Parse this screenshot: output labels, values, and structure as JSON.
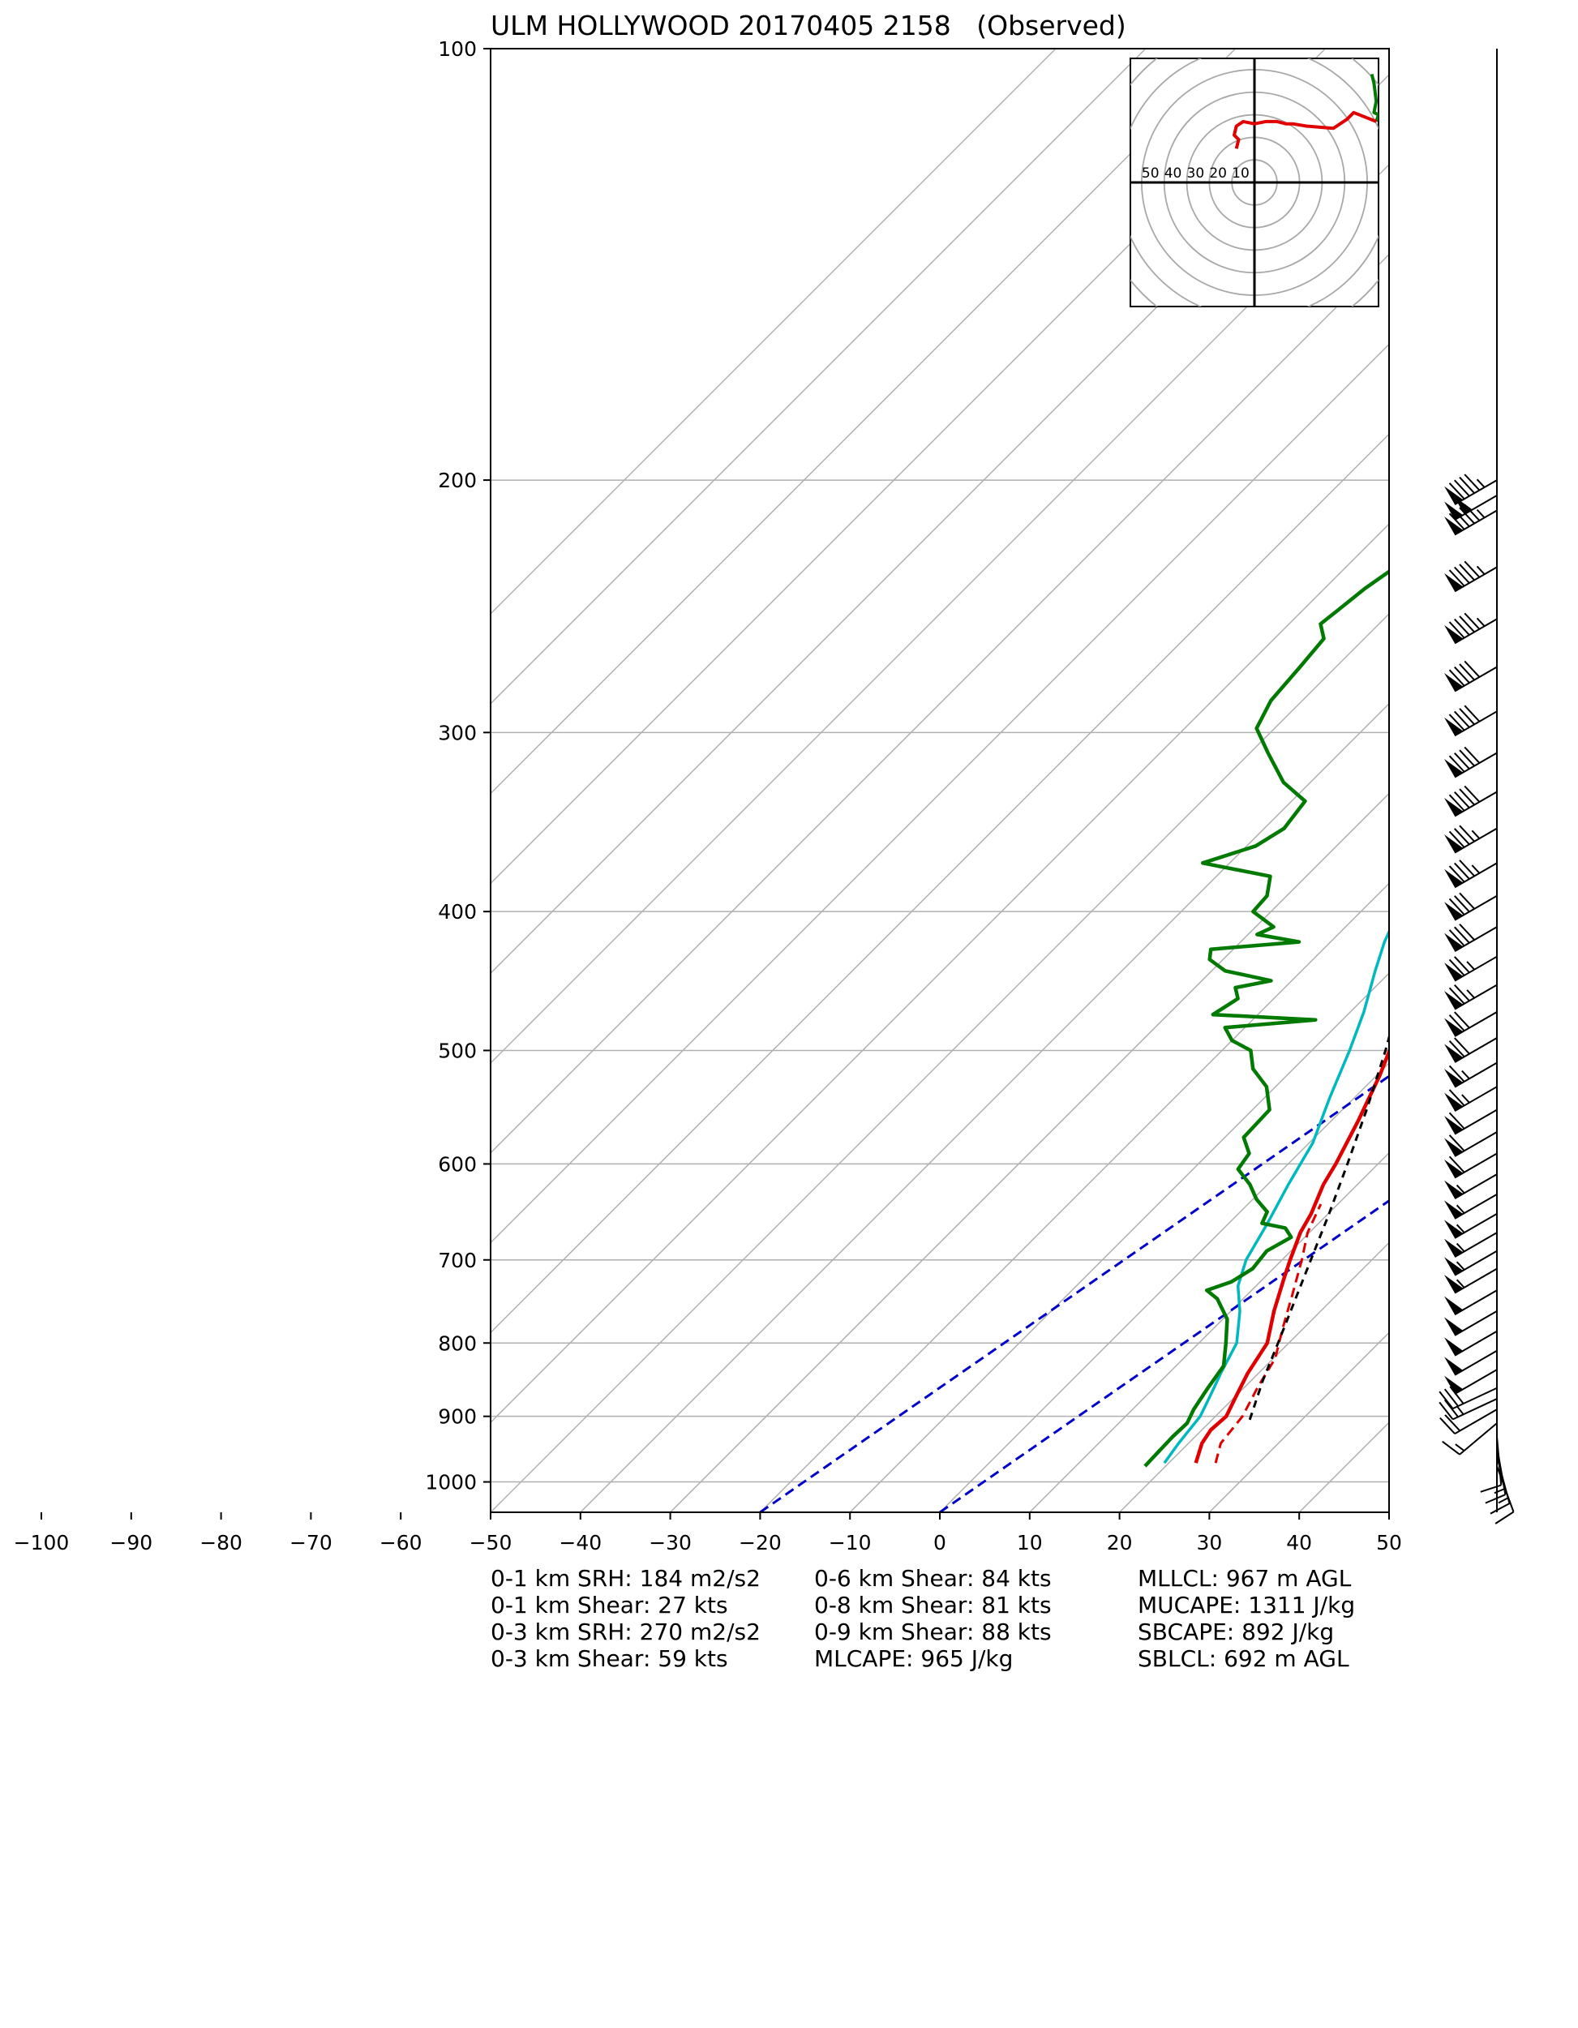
{
  "title": "ULM HOLLYWOOD 20170405 2158   (Observed)",
  "stats": {
    "col1": [
      "0-1 km SRH: 184 m2/s2",
      "0-1 km Shear: 27 kts",
      "0-3 km SRH: 270 m2/s2",
      "0-3 km Shear: 59 kts"
    ],
    "col2": [
      "0-6 km Shear: 84 kts",
      "0-8 km Shear: 81 kts",
      "0-9 km Shear: 88 kts",
      "MLCAPE: 965 J/kg"
    ],
    "col3": [
      "MLLCL: 967 m AGL",
      "MUCAPE: 1311 J/kg",
      "SBCAPE: 892 J/kg",
      "SBLCL: 692 m AGL"
    ]
  },
  "chart_data": {
    "type": "line",
    "x_ticks": [
      -100,
      -90,
      -80,
      -70,
      -60,
      -50,
      -40,
      -30,
      -20,
      -10,
      0,
      10,
      20,
      30,
      40,
      50
    ],
    "x_tick_labels": [
      "−100",
      "−90",
      "−80",
      "−70",
      "−60",
      "−50",
      "−40",
      "−30",
      "−20",
      "−10",
      "0",
      "10",
      "20",
      "30",
      "40",
      "50"
    ],
    "y_ticks": [
      100,
      200,
      300,
      400,
      500,
      600,
      700,
      800,
      900,
      1000
    ],
    "y_scale": "log",
    "ylim": [
      1050,
      100
    ],
    "xlim": [
      -50,
      50
    ],
    "skew_deg": 45,
    "grid": true,
    "colors": {
      "temperature": "#e00000",
      "dewpoint": "#007a00",
      "wetbulb": "#00b8c0",
      "virtual": "#e00000",
      "parcel": "#000000",
      "guide": "#0000cc",
      "grid": "#b0b0b0"
    },
    "series": [
      {
        "key": "temperature",
        "points": [
          [
            970,
            23.0
          ],
          [
            940,
            21.5
          ],
          [
            920,
            21.0
          ],
          [
            900,
            21.2
          ],
          [
            870,
            20.0
          ],
          [
            840,
            18.8
          ],
          [
            800,
            17.6
          ],
          [
            760,
            14.8
          ],
          [
            720,
            12.2
          ],
          [
            700,
            10.9
          ],
          [
            670,
            9.0
          ],
          [
            650,
            8.1
          ],
          [
            620,
            6.2
          ],
          [
            600,
            5.3
          ],
          [
            560,
            3.0
          ],
          [
            520,
            0.3
          ],
          [
            490,
            -2.2
          ],
          [
            460,
            -4.6
          ],
          [
            430,
            -6.6
          ],
          [
            410,
            -9.5
          ],
          [
            390,
            -12.5
          ],
          [
            370,
            -15.5
          ],
          [
            350,
            -18.2
          ],
          [
            330,
            -21.2
          ],
          [
            310,
            -24.0
          ],
          [
            290,
            -27.0
          ],
          [
            270,
            -30.3
          ],
          [
            250,
            -34.6
          ],
          [
            230,
            -39.8
          ],
          [
            215,
            -42.5
          ],
          [
            205,
            -41.8
          ],
          [
            200,
            -40.6
          ]
        ]
      },
      {
        "key": "virtual",
        "points": [
          [
            970,
            25.2
          ],
          [
            940,
            23.6
          ],
          [
            900,
            23.0
          ],
          [
            860,
            21.5
          ],
          [
            820,
            20.2
          ],
          [
            780,
            17.6
          ],
          [
            740,
            15.0
          ],
          [
            700,
            12.2
          ],
          [
            670,
            9.8
          ],
          [
            640,
            8.1
          ]
        ]
      },
      {
        "key": "wetbulb",
        "points": [
          [
            970,
            19.5
          ],
          [
            940,
            18.9
          ],
          [
            900,
            18.3
          ],
          [
            870,
            17.1
          ],
          [
            840,
            15.8
          ],
          [
            800,
            14.2
          ],
          [
            760,
            11.0
          ],
          [
            730,
            8.0
          ],
          [
            700,
            6.0
          ],
          [
            660,
            4.3
          ],
          [
            620,
            2.3
          ],
          [
            580,
            0.4
          ],
          [
            540,
            -2.7
          ],
          [
            500,
            -5.8
          ],
          [
            470,
            -8.5
          ],
          [
            440,
            -11.8
          ],
          [
            420,
            -14.0
          ],
          [
            400,
            -15.8
          ],
          [
            380,
            -18.7
          ],
          [
            360,
            -21.5
          ],
          [
            340,
            -24.6
          ],
          [
            320,
            -27.9
          ],
          [
            300,
            -31.4
          ],
          [
            280,
            -33.9
          ],
          [
            260,
            -36.6
          ],
          [
            240,
            -40.0
          ],
          [
            225,
            -43.0
          ],
          [
            210,
            -42.8
          ],
          [
            200,
            -41.4
          ]
        ]
      },
      {
        "key": "dewpoint",
        "points": [
          [
            975,
            17.7
          ],
          [
            930,
            17.5
          ],
          [
            910,
            17.6
          ],
          [
            890,
            16.8
          ],
          [
            860,
            16.0
          ],
          [
            830,
            15.3
          ],
          [
            800,
            13.0
          ],
          [
            770,
            10.5
          ],
          [
            745,
            7.1
          ],
          [
            735,
            5.0
          ],
          [
            725,
            6.8
          ],
          [
            710,
            7.7
          ],
          [
            690,
            7.3
          ],
          [
            675,
            8.5
          ],
          [
            665,
            6.8
          ],
          [
            660,
            3.7
          ],
          [
            648,
            3.0
          ],
          [
            635,
            0.4
          ],
          [
            620,
            -2.0
          ],
          [
            605,
            -5.0
          ],
          [
            590,
            -5.5
          ],
          [
            575,
            -7.9
          ],
          [
            550,
            -8.1
          ],
          [
            530,
            -11.0
          ],
          [
            515,
            -14.5
          ],
          [
            500,
            -16.8
          ],
          [
            492,
            -20.0
          ],
          [
            482,
            -22.2
          ],
          [
            476,
            -13.0
          ],
          [
            472,
            -25.0
          ],
          [
            460,
            -24.0
          ],
          [
            452,
            -25.5
          ],
          [
            447,
            -22.3
          ],
          [
            440,
            -28.5
          ],
          [
            432,
            -31.5
          ],
          [
            425,
            -32.5
          ],
          [
            420,
            -23.5
          ],
          [
            415,
            -29.0
          ],
          [
            410,
            -28.0
          ],
          [
            400,
            -32.0
          ],
          [
            390,
            -32.2
          ],
          [
            378,
            -34.0
          ],
          [
            370,
            -43.0
          ],
          [
            360,
            -39.0
          ],
          [
            350,
            -37.8
          ],
          [
            335,
            -38.5
          ],
          [
            325,
            -43.0
          ],
          [
            310,
            -48.0
          ],
          [
            298,
            -52.0
          ],
          [
            285,
            -53.5
          ],
          [
            270,
            -54.0
          ],
          [
            258,
            -54.5
          ],
          [
            252,
            -56.5
          ],
          [
            245,
            -56.0
          ],
          [
            238,
            -55.5
          ],
          [
            230,
            -54.5
          ],
          [
            220,
            -55.5
          ],
          [
            212,
            -56.0
          ],
          [
            206,
            -52.0
          ],
          [
            204,
            -50.0
          ],
          [
            202,
            -51.5
          ],
          [
            200,
            -56.0
          ],
          [
            198,
            -55.0
          ]
        ]
      },
      {
        "key": "parcel",
        "points": [
          [
            905,
            24.2
          ],
          [
            850,
            21.3
          ],
          [
            800,
            18.8
          ],
          [
            750,
            16.1
          ],
          [
            700,
            13.2
          ],
          [
            650,
            10.1
          ],
          [
            600,
            6.6
          ],
          [
            550,
            2.7
          ],
          [
            500,
            -1.8
          ],
          [
            450,
            -7.1
          ],
          [
            400,
            -13.3
          ],
          [
            350,
            -20.4
          ],
          [
            300,
            -28.5
          ],
          [
            250,
            -37.3
          ],
          [
            220,
            -42.4
          ],
          [
            198,
            -46.0
          ]
        ]
      }
    ],
    "guide_lines": [
      {
        "points": [
          [
            1050,
            -20.0
          ],
          [
            100,
            52.0
          ]
        ]
      },
      {
        "points": [
          [
            1050,
            0.0
          ],
          [
            100,
            72.0
          ]
        ]
      }
    ],
    "hodograph": {
      "ring_labels": [
        "50",
        "40",
        "30",
        "20",
        "10"
      ],
      "ring_spacing": 10,
      "max_ring": 50,
      "u_ext": [
        -55,
        55
      ],
      "v_ext": [
        -55,
        55
      ],
      "segments": [
        {
          "color": "#007a00",
          "points": [
            [
              52,
              48
            ],
            [
              53,
              44
            ],
            [
              54,
              36
            ],
            [
              53,
              31
            ],
            [
              55,
              30
            ],
            [
              54,
              27
            ]
          ]
        },
        {
          "color": "#e00000",
          "points": [
            [
              54,
              27
            ],
            [
              44,
              31
            ],
            [
              41,
              28
            ],
            [
              35,
              24
            ],
            [
              23,
              25
            ],
            [
              17,
              26
            ],
            [
              14,
              26
            ],
            [
              10,
              27
            ],
            [
              5,
              27
            ],
            [
              0,
              26
            ],
            [
              -5,
              27
            ],
            [
              -8,
              25
            ],
            [
              -9,
              21
            ],
            [
              -7,
              19
            ],
            [
              -8,
              15
            ]
          ]
        }
      ]
    },
    "wind_barbs": {
      "speed_unit": "kts",
      "barbs": [
        {
          "p": 975,
          "dir": 160,
          "spd": 10
        },
        {
          "p": 960,
          "dir": 165,
          "spd": 15
        },
        {
          "p": 945,
          "dir": 170,
          "spd": 15
        },
        {
          "p": 930,
          "dir": 175,
          "spd": 10
        },
        {
          "p": 910,
          "dir": 230,
          "spd": 15
        },
        {
          "p": 890,
          "dir": 240,
          "spd": 20
        },
        {
          "p": 875,
          "dir": 245,
          "spd": 25
        },
        {
          "p": 860,
          "dir": 245,
          "spd": 30
        },
        {
          "p": 835,
          "dir": 240,
          "spd": 50
        },
        {
          "p": 810,
          "dir": 240,
          "spd": 50
        },
        {
          "p": 785,
          "dir": 240,
          "spd": 50
        },
        {
          "p": 760,
          "dir": 240,
          "spd": 50
        },
        {
          "p": 735,
          "dir": 240,
          "spd": 50
        },
        {
          "p": 710,
          "dir": 240,
          "spd": 55
        },
        {
          "p": 690,
          "dir": 240,
          "spd": 55
        },
        {
          "p": 670,
          "dir": 240,
          "spd": 55
        },
        {
          "p": 650,
          "dir": 240,
          "spd": 55
        },
        {
          "p": 630,
          "dir": 240,
          "spd": 55
        },
        {
          "p": 610,
          "dir": 240,
          "spd": 55
        },
        {
          "p": 590,
          "dir": 240,
          "spd": 60
        },
        {
          "p": 570,
          "dir": 240,
          "spd": 60
        },
        {
          "p": 550,
          "dir": 240,
          "spd": 60
        },
        {
          "p": 530,
          "dir": 240,
          "spd": 65
        },
        {
          "p": 510,
          "dir": 240,
          "spd": 65
        },
        {
          "p": 490,
          "dir": 240,
          "spd": 70
        },
        {
          "p": 470,
          "dir": 240,
          "spd": 70
        },
        {
          "p": 450,
          "dir": 240,
          "spd": 75
        },
        {
          "p": 430,
          "dir": 240,
          "spd": 75
        },
        {
          "p": 410,
          "dir": 240,
          "spd": 80
        },
        {
          "p": 390,
          "dir": 240,
          "spd": 80
        },
        {
          "p": 370,
          "dir": 240,
          "spd": 85
        },
        {
          "p": 350,
          "dir": 240,
          "spd": 85
        },
        {
          "p": 330,
          "dir": 240,
          "spd": 90
        },
        {
          "p": 310,
          "dir": 240,
          "spd": 90
        },
        {
          "p": 290,
          "dir": 240,
          "spd": 90
        },
        {
          "p": 270,
          "dir": 240,
          "spd": 90
        },
        {
          "p": 250,
          "dir": 240,
          "spd": 95
        },
        {
          "p": 230,
          "dir": 240,
          "spd": 95
        },
        {
          "p": 210,
          "dir": 240,
          "spd": 95
        },
        {
          "p": 205,
          "dir": 240,
          "spd": 100
        },
        {
          "p": 200,
          "dir": 240,
          "spd": 95
        }
      ]
    }
  }
}
